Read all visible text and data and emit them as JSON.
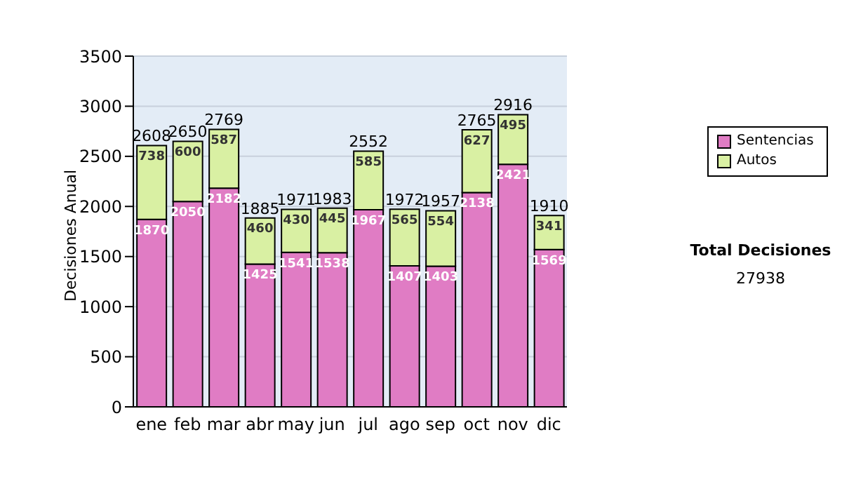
{
  "chart_data": {
    "type": "bar",
    "stacked": true,
    "ylabel": "Decisiones Anual",
    "categories": [
      "ene",
      "feb",
      "mar",
      "abr",
      "may",
      "jun",
      "jul",
      "ago",
      "sep",
      "oct",
      "nov",
      "dic"
    ],
    "series": [
      {
        "name": "Sentencias",
        "color": "#e07cc4",
        "values": [
          1870,
          2050,
          2182,
          1425,
          1541,
          1538,
          1967,
          1407,
          1403,
          2138,
          2421,
          1569
        ]
      },
      {
        "name": "Autos",
        "color": "#d9f0a3",
        "values": [
          738,
          600,
          587,
          460,
          430,
          445,
          585,
          565,
          554,
          627,
          495,
          341
        ]
      }
    ],
    "totals": [
      "2608",
      "2650",
      "2769",
      "1885",
      "1971",
      "1983",
      "2552",
      "1972",
      "1957",
      "2765",
      "2916",
      "1910"
    ],
    "data_labels": true,
    "ylim": [
      0,
      3500
    ],
    "yticks": [
      0,
      500,
      1000,
      1500,
      2000,
      2500,
      3000,
      3500
    ],
    "grid": "y",
    "legend": "right",
    "annotations": [
      "Total Decisiones",
      "27938"
    ]
  }
}
